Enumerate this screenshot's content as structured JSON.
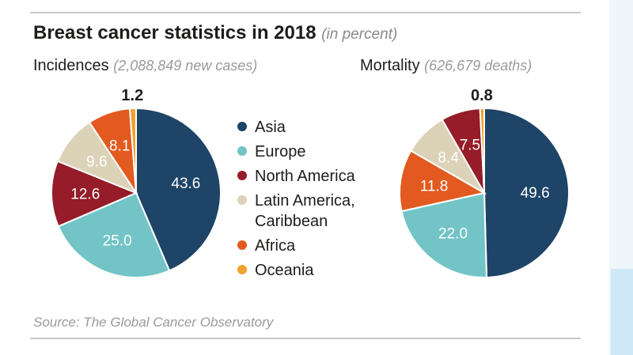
{
  "title": "Breast cancer statistics in 2018",
  "title_unit": "(in percent)",
  "source": "Source: The Global Cancer Observatory",
  "colors": {
    "Asia": "#1e4467",
    "Europe": "#72c4c6",
    "North America": "#951c28",
    "Latin America, Caribbean": "#dcd2b8",
    "Africa": "#e25a1f",
    "Oceania": "#f0a12e"
  },
  "legend": [
    {
      "label": "Asia",
      "color": "#1e4467"
    },
    {
      "label": "Europe",
      "color": "#72c4c6"
    },
    {
      "label": "North America",
      "color": "#951c28"
    },
    {
      "label": "Latin America,\nCaribbean",
      "color": "#dcd2b8"
    },
    {
      "label": "Africa",
      "color": "#e25a1f"
    },
    {
      "label": "Oceania",
      "color": "#f0a12e"
    }
  ],
  "chart_data": [
    {
      "type": "pie",
      "title": "Incidences",
      "subtitle": "(2,088,849 new cases)",
      "categories": [
        "Asia",
        "Europe",
        "North America",
        "Latin America, Caribbean",
        "Africa",
        "Oceania"
      ],
      "values": [
        43.6,
        25.0,
        12.6,
        9.6,
        8.1,
        1.2
      ],
      "labels": [
        "43.6",
        "25.0",
        "12.6",
        "9.6",
        "8.1",
        "1.2"
      ]
    },
    {
      "type": "pie",
      "title": "Mortality",
      "subtitle": "(626,679 deaths)",
      "categories": [
        "Asia",
        "Europe",
        "Africa",
        "Latin America, Caribbean",
        "North America",
        "Oceania"
      ],
      "values": [
        49.6,
        22.0,
        11.8,
        8.4,
        7.5,
        0.8
      ],
      "labels": [
        "49.6",
        "22.0",
        "11.8",
        "8.4",
        "7.5",
        "0.8"
      ]
    }
  ]
}
